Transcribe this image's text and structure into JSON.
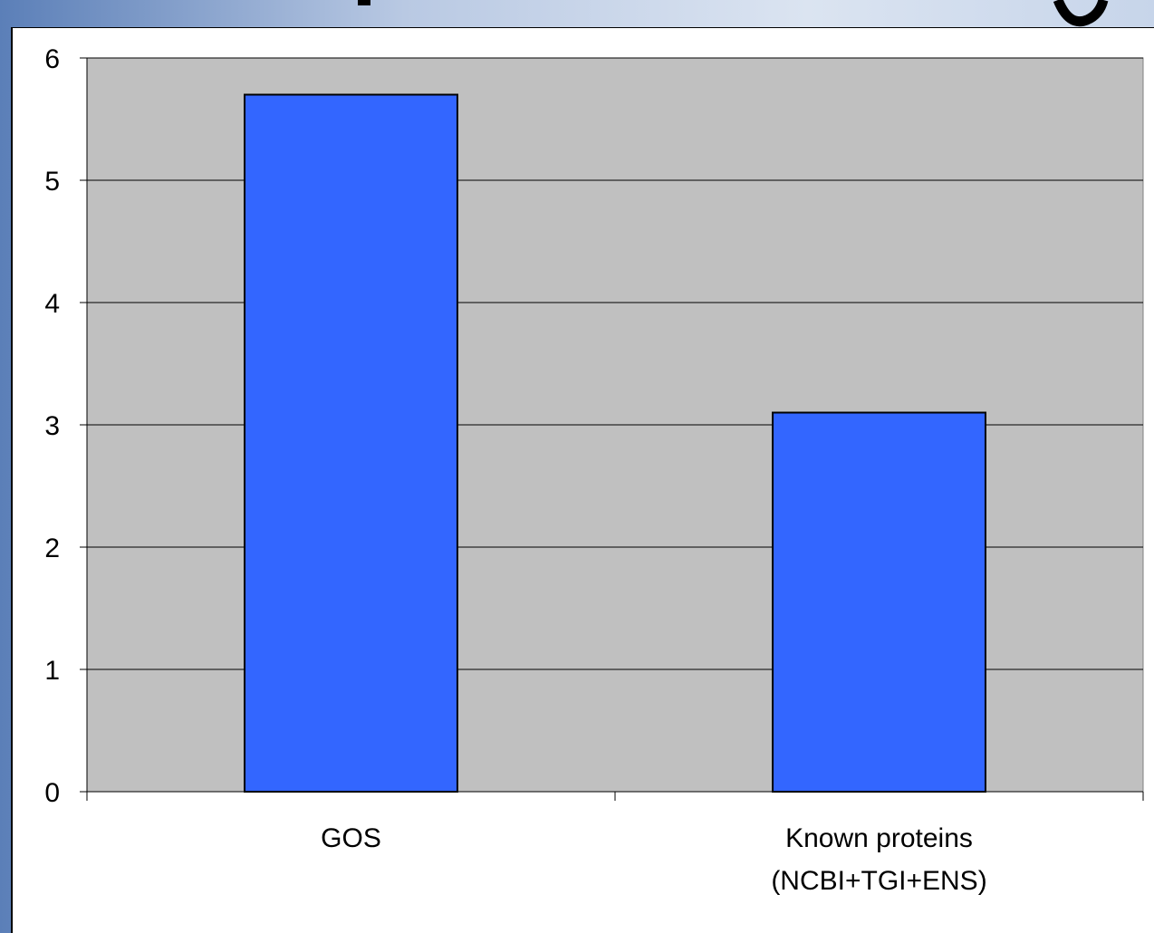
{
  "chart_data": {
    "type": "bar",
    "categories": [
      "GOS",
      "Known proteins (NCBI+TGI+ENS)"
    ],
    "category_label_lines": [
      [
        "GOS"
      ],
      [
        "Known proteins",
        "(NCBI+TGI+ENS)"
      ]
    ],
    "values": [
      5.7,
      3.1
    ],
    "ylim": [
      0,
      6
    ],
    "yticks": [
      0,
      1,
      2,
      3,
      4,
      5,
      6
    ],
    "grid": true,
    "legend": "none",
    "colors": {
      "bar": "#3366ff",
      "plot_background": "#c0c0c0",
      "gridline": "#000000"
    }
  }
}
